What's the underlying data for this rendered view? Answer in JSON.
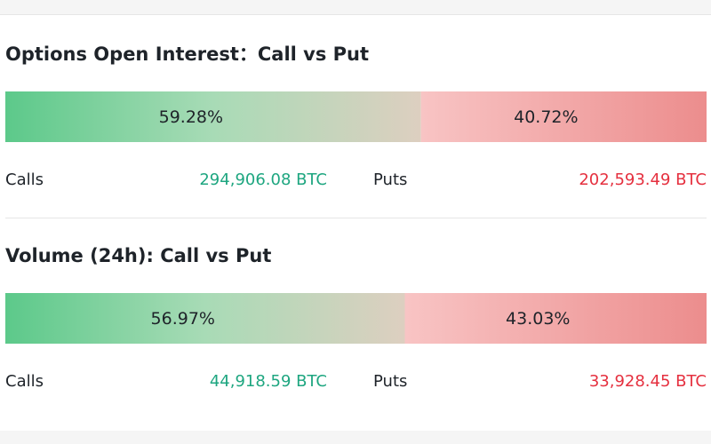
{
  "sections": [
    {
      "title": "Options Open Interest：Call vs Put",
      "bar": {
        "values": [
          59.28,
          40.72
        ],
        "value_labels": [
          "59.28%",
          "40.72%"
        ]
      },
      "calls": {
        "label": "Calls",
        "value": "294,906.08 BTC"
      },
      "puts": {
        "label": "Puts",
        "value": "202,593.49 BTC"
      }
    },
    {
      "title": "Volume (24h): Call vs Put",
      "bar": {
        "values": [
          56.97,
          43.03
        ],
        "value_labels": [
          "56.97%",
          "43.03%"
        ]
      },
      "calls": {
        "label": "Calls",
        "value": "44,918.59 BTC"
      },
      "puts": {
        "label": "Puts",
        "value": "33,928.45 BTC"
      }
    }
  ]
}
